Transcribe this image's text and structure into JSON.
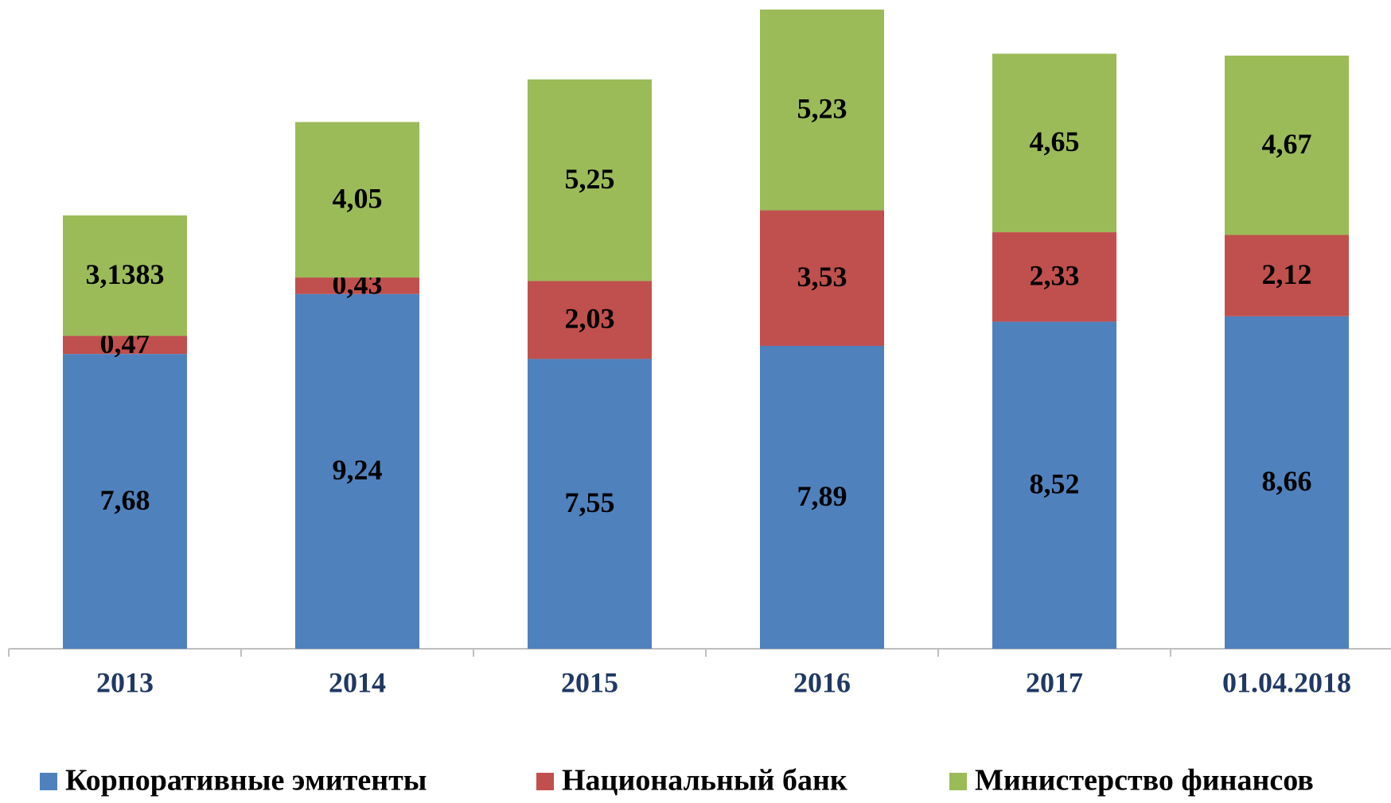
{
  "chart_data": {
    "type": "stacked_bar",
    "categories": [
      "2013",
      "2014",
      "2015",
      "2016",
      "2017",
      "01.04.2018"
    ],
    "series": [
      {
        "name": "Корпоративные эмитенты",
        "color": "#4f81bd",
        "values": [
          7.68,
          9.24,
          7.55,
          7.89,
          8.52,
          8.66
        ],
        "value_labels": [
          "7,68",
          "9,24",
          "7,55",
          "7,89",
          "8,52",
          "8,66"
        ]
      },
      {
        "name": "Национальный банк",
        "color": "#c0504d",
        "values": [
          0.47,
          0.43,
          2.03,
          3.53,
          2.33,
          2.12
        ],
        "value_labels": [
          "0,47",
          "0,43",
          "2,03",
          "3,53",
          "2,33",
          "2,12"
        ]
      },
      {
        "name": "Министерство финансов",
        "color": "#9bbb59",
        "values": [
          3.1383,
          4.05,
          5.25,
          5.23,
          4.65,
          4.67
        ],
        "value_labels": [
          "3,1383",
          "4,05",
          "5,25",
          "5,23",
          "4,65",
          "4,67"
        ]
      }
    ],
    "legend": "bottom"
  }
}
